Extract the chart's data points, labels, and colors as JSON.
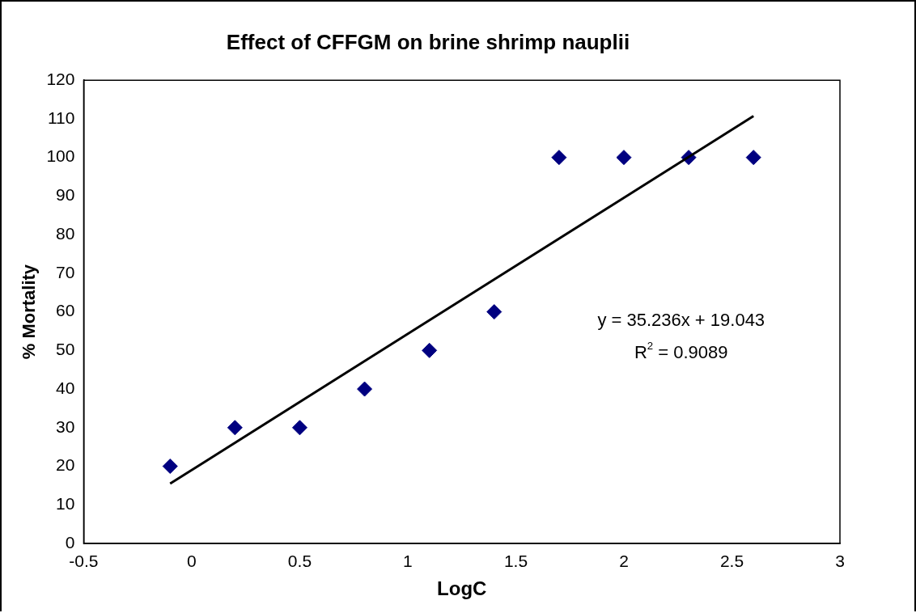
{
  "chart_data": {
    "type": "scatter",
    "title": "Effect of CFFGM on brine shrimp nauplii",
    "xlabel": "LogC",
    "ylabel": "% Mortality",
    "x": [
      -0.1,
      0.2,
      0.5,
      0.8,
      1.1,
      1.4,
      1.7,
      2.0,
      2.3,
      2.6
    ],
    "series": [
      {
        "color": "#000080",
        "marker": "diamond",
        "values": [
          20,
          30,
          30,
          40,
          50,
          60,
          100,
          100,
          100,
          100
        ]
      },
      {
        "type": "line",
        "color": "#000000",
        "marker": "none",
        "x": [
          -0.1,
          2.6
        ],
        "values": [
          15.5,
          110.7
        ]
      }
    ],
    "xlim": [
      -0.5,
      3
    ],
    "xticks": [
      -0.5,
      0,
      0.5,
      1,
      1.5,
      2,
      2.5,
      3
    ],
    "ylim": [
      0,
      120
    ],
    "yticks": [
      0,
      10,
      20,
      30,
      40,
      50,
      60,
      70,
      80,
      90,
      100,
      110,
      120
    ],
    "grid": false,
    "legend": false,
    "annotations": [
      "y = 35.236x + 19.043",
      "R$^{2}$ = 0.9089"
    ]
  }
}
